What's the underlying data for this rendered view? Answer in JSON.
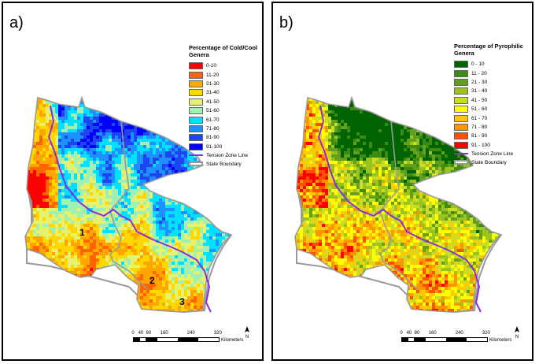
{
  "panels": [
    {
      "id": "a",
      "letter": "a)",
      "legend_title": "Percentage of Cold/Cool Genera",
      "classes": [
        {
          "label": "0-10",
          "color": "#ff0000"
        },
        {
          "label": "11-20",
          "color": "#ff6400"
        },
        {
          "label": "21-30",
          "color": "#ffa500"
        },
        {
          "label": "31-40",
          "color": "#ffd700"
        },
        {
          "label": "41-50",
          "color": "#e6f26e"
        },
        {
          "label": "51-60",
          "color": "#a0f0b4"
        },
        {
          "label": "61-70",
          "color": "#00e1ff"
        },
        {
          "label": "71-80",
          "color": "#1e90ff"
        },
        {
          "label": "81-90",
          "color": "#1e46f0"
        },
        {
          "label": "91-100",
          "color": "#0000ff"
        }
      ],
      "tension_label": "Tension Zone Line",
      "state_label": "State Boundary",
      "region_numbers": [
        "1",
        "2",
        "3"
      ]
    },
    {
      "id": "b",
      "letter": "b)",
      "legend_title": "Percentage of Pyrophilic Genera",
      "classes": [
        {
          "label": "0 - 10",
          "color": "#006400"
        },
        {
          "label": "11 - 20",
          "color": "#3c8c14"
        },
        {
          "label": "21 - 30",
          "color": "#64a01e"
        },
        {
          "label": "31 - 40",
          "color": "#9bc31e"
        },
        {
          "label": "41 - 50",
          "color": "#c8dc28"
        },
        {
          "label": "51 - 60",
          "color": "#ffff00"
        },
        {
          "label": "61 - 70",
          "color": "#ffc800"
        },
        {
          "label": "71 - 80",
          "color": "#ff9600"
        },
        {
          "label": "81 - 90",
          "color": "#ff5000"
        },
        {
          "label": "91 - 100",
          "color": "#ff0000"
        }
      ],
      "tension_label": "Tension Zone Line",
      "state_label": "State Boundary"
    }
  ],
  "scale": {
    "ticks": [
      "0",
      "40",
      "80",
      "160",
      "240",
      "320"
    ],
    "unit": "Kilometers",
    "north_label": "N"
  },
  "colors": {
    "tension_line": "#8b2be2",
    "state_boundary": "#999999"
  }
}
